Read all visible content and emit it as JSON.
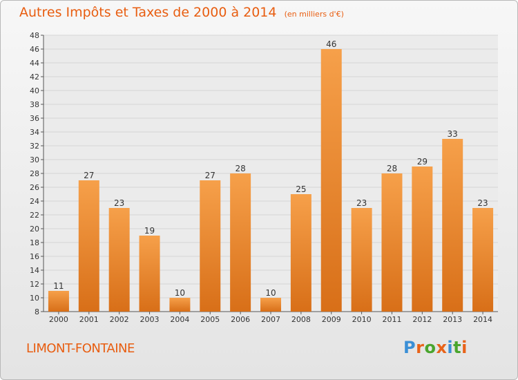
{
  "title": "Autres Impôts et Taxes de 2000 à 2014",
  "subtitle": "(en milliers d'€)",
  "commune": "LIMONT-FONTAINE",
  "brand": {
    "text": "Proxiti",
    "letter_colors": [
      "#3a8fd6",
      "#e8631a",
      "#4aa52e",
      "#e8631a",
      "#3a8fd6",
      "#4aa52e",
      "#e8631a"
    ]
  },
  "colors": {
    "bar_top": "#f6a04a",
    "bar_bottom": "#d86f18",
    "accent": "#e85d10"
  },
  "chart_data": {
    "type": "bar",
    "title": "Autres Impôts et Taxes de 2000 à 2014",
    "subtitle": "(en milliers d'€)",
    "categories": [
      "2000",
      "2001",
      "2002",
      "2003",
      "2004",
      "2005",
      "2006",
      "2007",
      "2008",
      "2009",
      "2010",
      "2011",
      "2012",
      "2013",
      "2014"
    ],
    "values": [
      11,
      27,
      23,
      19,
      10,
      27,
      28,
      10,
      25,
      46,
      23,
      28,
      29,
      33,
      23
    ],
    "ylim": [
      8,
      48
    ],
    "ytick_step": 2,
    "grid": true
  }
}
